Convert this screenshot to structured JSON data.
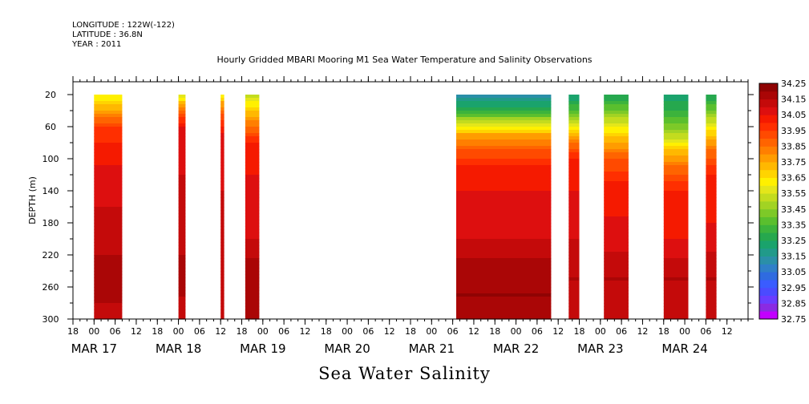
{
  "header": {
    "longitude": "LONGITUDE : 122W(-122)",
    "latitude": "LATITUDE : 36.8N",
    "year": "YEAR : 2011"
  },
  "chart_data": {
    "type": "heatmap",
    "title": "Hourly Gridded MBARI Mooring M1 Sea Water Temperature and Salinity Observations",
    "subtitle": "Sea Water Salinity",
    "ylabel": "DEPTH (m)",
    "yticks": [
      20,
      60,
      100,
      140,
      180,
      220,
      260,
      300
    ],
    "ylim": [
      300,
      4
    ],
    "x_tick_hour_labels": [
      "18",
      "00",
      "06",
      "12",
      "18",
      "00",
      "06",
      "12",
      "18",
      "00",
      "06",
      "12",
      "18",
      "00",
      "06",
      "12",
      "18",
      "00",
      "06",
      "12",
      "18",
      "00",
      "06",
      "12",
      "18",
      "00",
      "06",
      "12",
      "18",
      "00",
      "06",
      "12"
    ],
    "x_date_labels": [
      "MAR 17",
      "MAR 18",
      "MAR 19",
      "MAR 20",
      "MAR 21",
      "MAR 22",
      "MAR 23",
      "MAR 24"
    ],
    "x_range": [
      "2011-03-16T18:00",
      "2011-03-24T18:00"
    ],
    "colorbar": {
      "levels": [
        32.75,
        32.8,
        32.85,
        32.9,
        32.95,
        33.0,
        33.05,
        33.1,
        33.15,
        33.2,
        33.25,
        33.3,
        33.35,
        33.4,
        33.45,
        33.5,
        33.55,
        33.6,
        33.65,
        33.7,
        33.75,
        33.8,
        33.85,
        33.9,
        33.95,
        34.0,
        34.05,
        34.1,
        34.15,
        34.2,
        34.25
      ],
      "labels": [
        "34.25",
        "34.15",
        "34.05",
        "33.95",
        "33.85",
        "33.75",
        "33.65",
        "33.55",
        "33.45",
        "33.35",
        "33.25",
        "33.15",
        "33.05",
        "32.95",
        "32.85",
        "32.75"
      ],
      "colors": [
        "#c200ff",
        "#8a2be2",
        "#6a3dff",
        "#4b4bff",
        "#3a5cff",
        "#2f6be0",
        "#2f7fc8",
        "#2a8fa8",
        "#219a8a",
        "#1aa36c",
        "#26a84e",
        "#3cb33c",
        "#5abf2e",
        "#7dc928",
        "#a2d323",
        "#c3dc1e",
        "#e4e61a",
        "#fff000",
        "#ffd400",
        "#ffb800",
        "#ff9c00",
        "#ff7f00",
        "#ff6400",
        "#ff4a00",
        "#ff2f00",
        "#f51a00",
        "#dd0f0f",
        "#c40a0a",
        "#aa0606",
        "#8f0303"
      ]
    },
    "data_blocks": [
      {
        "start": "2011-03-17T00:00",
        "end": "2011-03-17T08:00",
        "profile": [
          [
            20,
            33.6
          ],
          [
            35,
            33.72
          ],
          [
            45,
            33.8
          ],
          [
            60,
            33.95
          ],
          [
            80,
            34.0
          ],
          [
            110,
            34.05
          ],
          [
            160,
            34.1
          ],
          [
            210,
            34.13
          ],
          [
            240,
            34.18
          ],
          [
            280,
            34.15
          ],
          [
            300,
            34.12
          ]
        ]
      },
      {
        "start": "2011-03-18T00:00",
        "end": "2011-03-18T02:00",
        "profile": [
          [
            20,
            33.55
          ],
          [
            30,
            33.7
          ],
          [
            40,
            33.85
          ],
          [
            60,
            34.05
          ],
          [
            120,
            34.1
          ],
          [
            200,
            34.12
          ],
          [
            240,
            34.18
          ],
          [
            280,
            34.14
          ],
          [
            300,
            34.1
          ]
        ]
      },
      {
        "start": "2011-03-18T12:00",
        "end": "2011-03-18T13:00",
        "profile": [
          [
            20,
            33.6
          ],
          [
            30,
            33.75
          ],
          [
            45,
            33.9
          ],
          [
            70,
            34.05
          ],
          [
            140,
            34.1
          ],
          [
            240,
            34.15
          ],
          [
            300,
            34.1
          ]
        ]
      },
      {
        "start": "2011-03-18T19:00",
        "end": "2011-03-18T23:00",
        "profile": [
          [
            20,
            33.5
          ],
          [
            40,
            33.7
          ],
          [
            60,
            33.85
          ],
          [
            80,
            34.0
          ],
          [
            120,
            34.05
          ],
          [
            200,
            34.1
          ],
          [
            240,
            34.18
          ],
          [
            300,
            34.15
          ]
        ]
      },
      {
        "start": "2011-03-21T07:00",
        "end": "2011-03-22T10:00",
        "profile": [
          [
            20,
            33.1
          ],
          [
            35,
            33.25
          ],
          [
            50,
            33.45
          ],
          [
            70,
            33.75
          ],
          [
            90,
            33.9
          ],
          [
            110,
            34.0
          ],
          [
            140,
            34.05
          ],
          [
            200,
            34.1
          ],
          [
            240,
            34.18
          ],
          [
            270,
            34.2
          ],
          [
            300,
            34.15
          ]
        ]
      },
      {
        "start": "2011-03-22T15:00",
        "end": "2011-03-22T18:00",
        "profile": [
          [
            20,
            33.2
          ],
          [
            40,
            33.35
          ],
          [
            60,
            33.6
          ],
          [
            80,
            33.85
          ],
          [
            100,
            34.0
          ],
          [
            140,
            34.05
          ],
          [
            200,
            34.1
          ],
          [
            250,
            34.15
          ],
          [
            300,
            34.12
          ]
        ]
      },
      {
        "start": "2011-03-23T01:00",
        "end": "2011-03-23T08:00",
        "profile": [
          [
            20,
            33.25
          ],
          [
            40,
            33.4
          ],
          [
            60,
            33.6
          ],
          [
            80,
            33.75
          ],
          [
            100,
            33.9
          ],
          [
            130,
            34.0
          ],
          [
            200,
            34.08
          ],
          [
            250,
            34.15
          ],
          [
            300,
            34.12
          ]
        ]
      },
      {
        "start": "2011-03-23T18:00",
        "end": "2011-03-24T01:00",
        "profile": [
          [
            20,
            33.2
          ],
          [
            50,
            33.35
          ],
          [
            70,
            33.5
          ],
          [
            90,
            33.7
          ],
          [
            110,
            33.85
          ],
          [
            140,
            34.0
          ],
          [
            200,
            34.05
          ],
          [
            250,
            34.15
          ],
          [
            300,
            34.12
          ]
        ]
      },
      {
        "start": "2011-03-24T06:00",
        "end": "2011-03-24T09:00",
        "profile": [
          [
            20,
            33.25
          ],
          [
            40,
            33.4
          ],
          [
            60,
            33.6
          ],
          [
            90,
            33.85
          ],
          [
            120,
            34.0
          ],
          [
            180,
            34.05
          ],
          [
            250,
            34.15
          ],
          [
            300,
            34.12
          ]
        ]
      }
    ]
  }
}
